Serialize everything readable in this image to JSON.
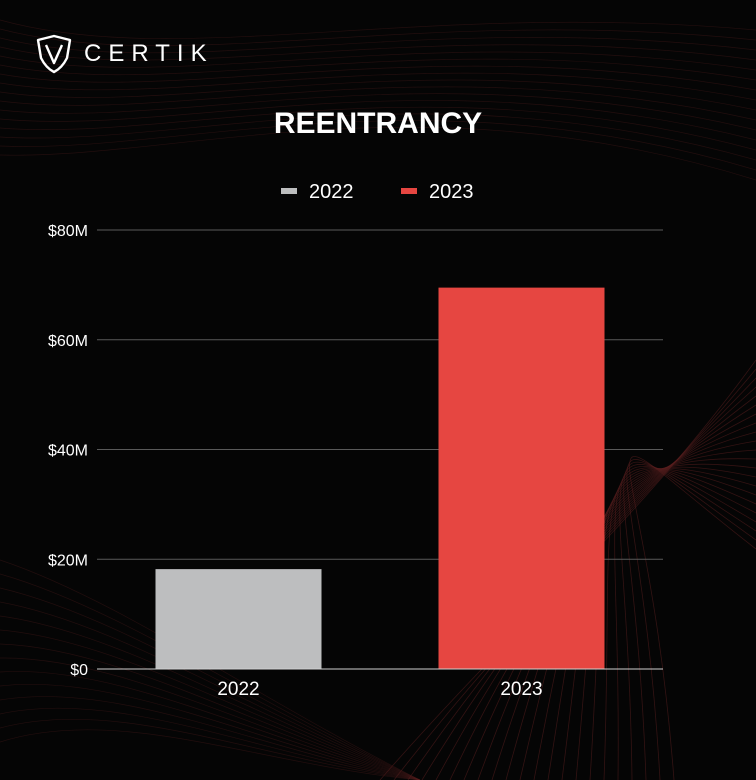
{
  "brand": {
    "name": "CERTIK"
  },
  "colors": {
    "background": "#050505",
    "grid": "#5a5a5a",
    "axis": "#d0d0d0",
    "wave": "#5a1f1f"
  },
  "chart_data": {
    "type": "bar",
    "title": "REENTRANCY",
    "categories": [
      "2022",
      "2023"
    ],
    "series": [
      {
        "name": "2022",
        "color": "#bdbebf",
        "values": [
          18.2,
          null
        ]
      },
      {
        "name": "2023",
        "color": "#e64641",
        "values": [
          null,
          69.5
        ]
      }
    ],
    "ylim": [
      0,
      80
    ],
    "yticks": [
      0,
      20,
      40,
      60,
      80
    ],
    "ytick_labels": [
      "$0",
      "$20M",
      "$40M",
      "$60M",
      "$80M"
    ],
    "xlabel": "",
    "ylabel": "",
    "grid": true,
    "legend_position": "top-center"
  }
}
